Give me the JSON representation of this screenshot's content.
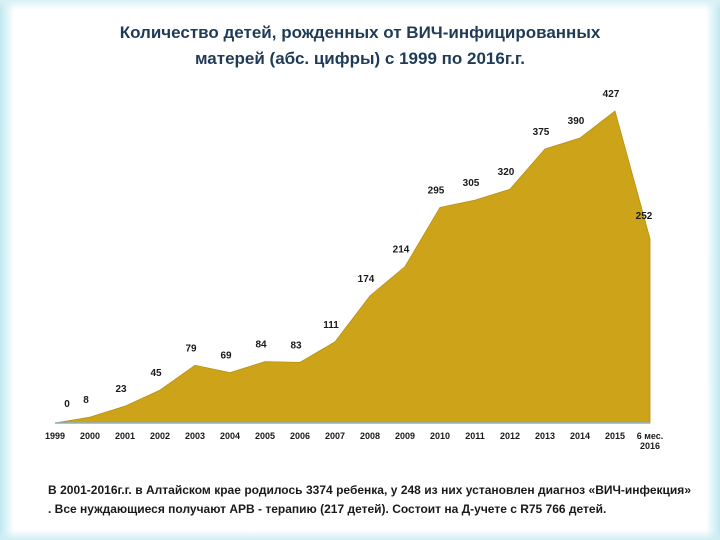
{
  "title": {
    "line1": "Количество детей, рожденных от ВИЧ-инфицированных",
    "line2": "матерей (абс. цифры) с 1999 по 2016г.г."
  },
  "chart_data": {
    "type": "area",
    "title": "Количество детей, рожденных от ВИЧ-инфицированных матерей (абс. цифры) с 1999 по 2016г.г.",
    "categories": [
      "1999",
      "2000",
      "2001",
      "2002",
      "2003",
      "2004",
      "2005",
      "2006",
      "2007",
      "2008",
      "2009",
      "2010",
      "2011",
      "2012",
      "2013",
      "2014",
      "2015",
      "6 мес. 2016"
    ],
    "values": [
      0,
      8,
      23,
      45,
      79,
      69,
      84,
      83,
      111,
      174,
      214,
      295,
      305,
      320,
      375,
      390,
      427,
      252
    ],
    "ylim": [
      0,
      427
    ],
    "grid": false,
    "legend": "none",
    "color": "#cda419"
  },
  "footer_note": "В 2001-2016г.г. в Алтайском крае родилось 3374 ребенка, у 248 из них установлен диагноз «ВИЧ-инфекция» . Все нуждающиеся получают АРВ - терапию (217 детей). Состоит на Д-учете с R75 766 детей."
}
